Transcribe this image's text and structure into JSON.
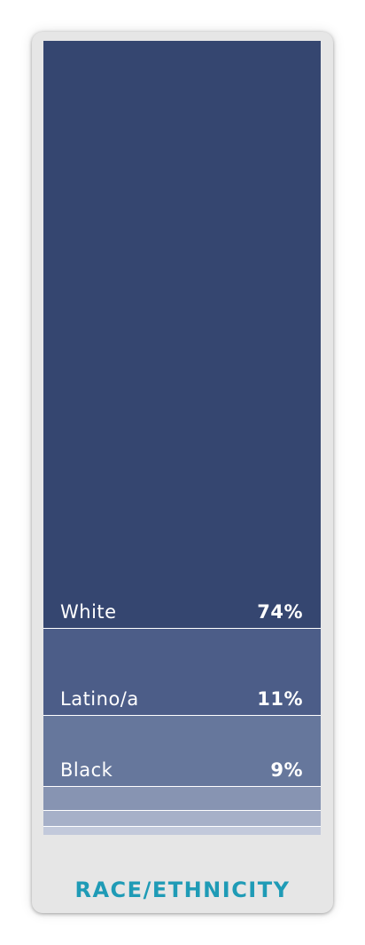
{
  "chart_data": {
    "type": "bar",
    "orientation": "stacked-vertical",
    "title": "RACE/ETHNICITY",
    "categories": [
      "White",
      "Latino/a",
      "Black",
      "",
      "",
      ""
    ],
    "values": [
      74,
      11,
      9,
      3,
      2,
      1
    ],
    "value_labels": [
      "74%",
      "11%",
      "9%",
      "",
      "",
      ""
    ],
    "colors": [
      "#354670",
      "#4c5d88",
      "#66779c",
      "#8794b2",
      "#a6b0c8",
      "#c2c9db"
    ],
    "ylim": [
      0,
      100
    ],
    "grid": false,
    "legend": "none"
  }
}
